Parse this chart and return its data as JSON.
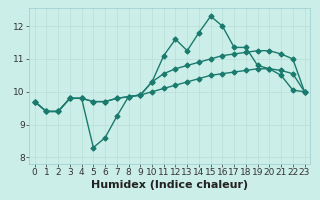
{
  "xlabel": "Humidex (Indice chaleur)",
  "ylabel": "",
  "bg_color": "#cceee8",
  "grid_color": "#b8ddd8",
  "line_color": "#1a7a6e",
  "xlim": [
    -0.5,
    23.5
  ],
  "ylim": [
    7.8,
    12.55
  ],
  "xticks": [
    0,
    1,
    2,
    3,
    4,
    5,
    6,
    7,
    8,
    9,
    10,
    11,
    12,
    13,
    14,
    15,
    16,
    17,
    18,
    19,
    20,
    21,
    22,
    23
  ],
  "yticks": [
    8,
    9,
    10,
    11,
    12
  ],
  "line1_x": [
    0,
    1,
    2,
    3,
    4,
    5,
    6,
    7,
    8,
    9,
    10,
    11,
    12,
    13,
    14,
    15,
    16,
    17,
    18,
    19,
    20,
    21,
    22,
    23
  ],
  "line1_y": [
    9.7,
    9.4,
    9.4,
    9.8,
    9.8,
    9.7,
    9.7,
    9.8,
    9.85,
    9.9,
    10.3,
    11.1,
    11.6,
    11.25,
    11.8,
    12.3,
    12.0,
    11.35,
    11.35,
    10.8,
    10.7,
    10.5,
    10.05,
    10.0
  ],
  "line2_x": [
    0,
    1,
    2,
    3,
    4,
    5,
    6,
    7,
    8,
    9,
    10,
    11,
    12,
    13,
    14,
    15,
    16,
    17,
    18,
    19,
    20,
    21,
    22,
    23
  ],
  "line2_y": [
    9.7,
    9.4,
    9.4,
    9.8,
    9.8,
    8.3,
    8.6,
    9.25,
    9.85,
    9.9,
    10.3,
    10.55,
    10.7,
    10.8,
    10.9,
    11.0,
    11.1,
    11.15,
    11.2,
    11.25,
    11.25,
    11.15,
    11.0,
    10.0
  ],
  "line3_x": [
    0,
    1,
    2,
    3,
    4,
    5,
    6,
    7,
    8,
    9,
    10,
    11,
    12,
    13,
    14,
    15,
    16,
    17,
    18,
    19,
    20,
    21,
    22,
    23
  ],
  "line3_y": [
    9.7,
    9.4,
    9.4,
    9.8,
    9.8,
    9.7,
    9.7,
    9.8,
    9.85,
    9.9,
    10.0,
    10.1,
    10.2,
    10.3,
    10.4,
    10.5,
    10.55,
    10.6,
    10.65,
    10.7,
    10.7,
    10.65,
    10.55,
    10.0
  ],
  "marker": "D",
  "markersize": 2.5,
  "linewidth": 1.0,
  "xlabel_fontsize": 8,
  "tick_fontsize": 6.5
}
